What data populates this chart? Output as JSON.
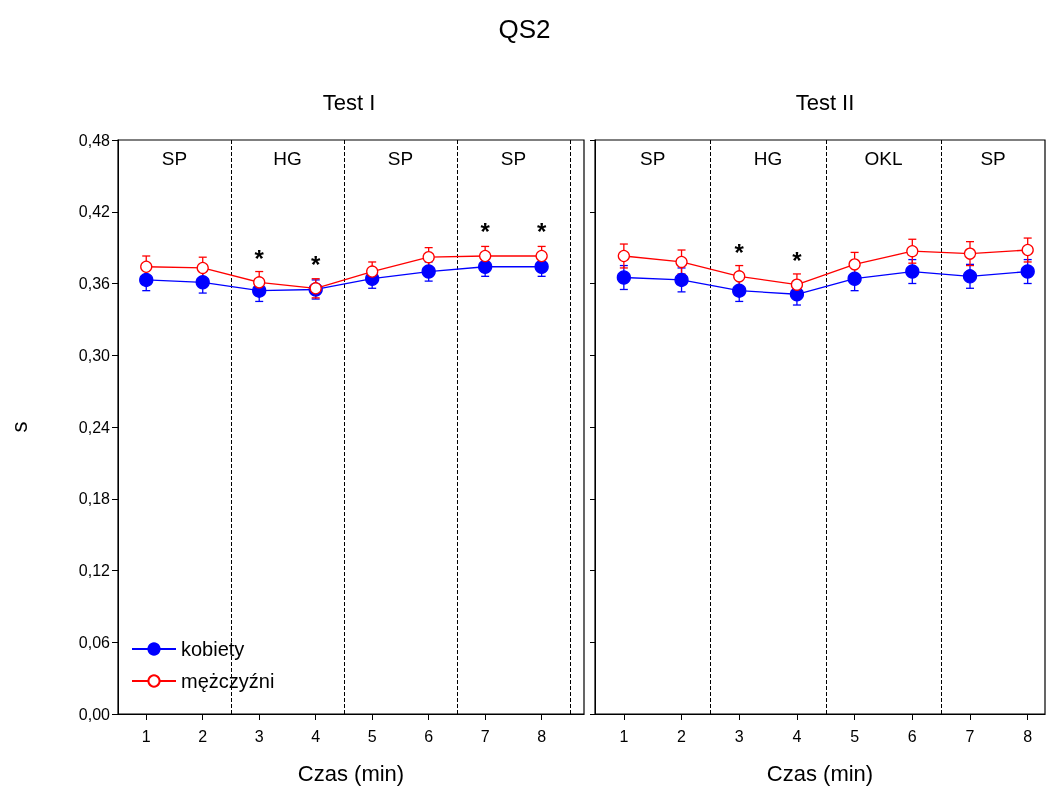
{
  "chart_data": [
    {
      "type": "line",
      "title": "QS2",
      "subtitle": "Test I",
      "xlabel": "Czas (min)",
      "ylabel": "s",
      "x": [
        1,
        2,
        3,
        4,
        5,
        6,
        7,
        8
      ],
      "series": [
        {
          "name": "kobiety",
          "color": "#0000ff",
          "marker": "circle",
          "values": [
            0.363,
            0.361,
            0.354,
            0.355,
            0.364,
            0.37,
            0.374,
            0.374
          ],
          "errors": [
            0.009,
            0.009,
            0.009,
            0.008,
            0.008,
            0.008,
            0.008,
            0.008
          ]
        },
        {
          "name": "mężczyźni",
          "color": "#ff0000",
          "marker": "circle",
          "values": [
            0.374,
            0.373,
            0.361,
            0.356,
            0.37,
            0.382,
            0.383,
            0.383
          ],
          "errors": [
            0.009,
            0.009,
            0.009,
            0.008,
            0.008,
            0.008,
            0.008,
            0.008
          ]
        }
      ],
      "xlim": [
        0.5,
        8.75
      ],
      "xticks": [
        1,
        2,
        3,
        4,
        5,
        6,
        7,
        8
      ],
      "ylim": [
        0,
        0.48
      ],
      "yticks": [
        {
          "value": 0,
          "label": "0,00"
        },
        {
          "value": 0.06,
          "label": "0,06"
        },
        {
          "value": 0.12,
          "label": "0,12"
        },
        {
          "value": 0.18,
          "label": "0,18"
        },
        {
          "value": 0.24,
          "label": "0,24"
        },
        {
          "value": 0.3,
          "label": "0,30"
        },
        {
          "value": 0.36,
          "label": "0,36"
        },
        {
          "value": 0.42,
          "label": "0,42"
        },
        {
          "value": 0.48,
          "label": "0,48"
        }
      ],
      "ref_lines": [
        {
          "axis": "x",
          "value": 2.5,
          "line_style": "dashed",
          "color": "#000000"
        },
        {
          "axis": "x",
          "value": 4.5,
          "line_style": "dashed",
          "color": "#000000"
        },
        {
          "axis": "x",
          "value": 6.5,
          "line_style": "dashed",
          "color": "#000000"
        },
        {
          "axis": "x",
          "value": 8.5,
          "line_style": "dashed",
          "color": "#000000"
        }
      ],
      "annotations": [
        "SP",
        "HG",
        "SP",
        "SP",
        {
          "text": "*",
          "x": 3,
          "y": 0.361
        },
        {
          "text": "*",
          "x": 4,
          "y": 0.356
        },
        {
          "text": "*",
          "x": 7,
          "y": 0.383
        },
        {
          "text": "*",
          "x": 8,
          "y": 0.383
        }
      ],
      "legend": "bottom left",
      "grid": false,
      "line_style": "solid"
    },
    {
      "type": "line",
      "subtitle": "Test II",
      "xlabel": "Czas (min)",
      "x": [
        1,
        2,
        3,
        4,
        5,
        6,
        7,
        8
      ],
      "series": [
        {
          "color": "#0000ff",
          "marker": "circle",
          "values": [
            0.365,
            0.363,
            0.354,
            0.351,
            0.364,
            0.37,
            0.366,
            0.37
          ],
          "errors": [
            0.01,
            0.01,
            0.009,
            0.009,
            0.01,
            0.01,
            0.01,
            0.01
          ]
        },
        {
          "color": "#ff0000",
          "marker": "circle",
          "values": [
            0.383,
            0.378,
            0.366,
            0.359,
            0.376,
            0.387,
            0.385,
            0.388
          ],
          "errors": [
            0.01,
            0.01,
            0.009,
            0.009,
            0.01,
            0.01,
            0.01,
            0.01
          ]
        }
      ],
      "xlim": [
        0.5,
        8.3
      ],
      "xticks": [
        1,
        2,
        3,
        4,
        5,
        6,
        7,
        8
      ],
      "ylim": [
        0,
        0.48
      ],
      "yticks": [
        {
          "value": 0,
          "label": null
        },
        {
          "value": 0.06,
          "label": null
        },
        {
          "value": 0.12,
          "label": null
        },
        {
          "value": 0.18,
          "label": null
        },
        {
          "value": 0.24,
          "label": null
        },
        {
          "value": 0.3,
          "label": null
        },
        {
          "value": 0.36,
          "label": null
        },
        {
          "value": 0.42,
          "label": null
        },
        {
          "value": 0.48,
          "label": null
        }
      ],
      "tick_labels": "x",
      "ref_lines": [
        {
          "axis": "x",
          "value": 2.5,
          "line_style": "dashed",
          "color": "#000000"
        },
        {
          "axis": "x",
          "value": 4.5,
          "line_style": "dashed",
          "color": "#000000"
        },
        {
          "axis": "x",
          "value": 6.5,
          "line_style": "dashed",
          "color": "#000000"
        }
      ],
      "annotations": [
        "SP",
        "HG",
        "OKL",
        "SP",
        {
          "text": "*",
          "x": 3,
          "y": 0.366
        },
        {
          "text": "*",
          "x": 4,
          "y": 0.359
        }
      ],
      "grid": false,
      "line_style": "solid"
    }
  ]
}
